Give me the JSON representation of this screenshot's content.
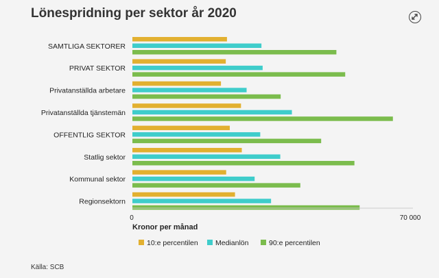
{
  "header": {
    "title": "Lönespridning per sektor år 2020",
    "expand_icon": "expand-arrows-icon"
  },
  "chart_data": {
    "type": "bar",
    "orientation": "horizontal",
    "title": "Lönespridning per sektor år 2020",
    "xlabel": "Kronor per månad",
    "ylabel": "",
    "xlim": [
      0,
      70000
    ],
    "x_ticks": [
      "0",
      "70 000"
    ],
    "grid": false,
    "legend_position": "bottom",
    "categories": [
      "SAMTLIGA SEKTORER",
      "PRIVAT SEKTOR",
      "Privatanställda arbetare",
      "Privatanställda tjänstemän",
      "OFFENTLIG SEKTOR",
      "Statlig sektor",
      "Kommunal sektor",
      "Regionsektorn"
    ],
    "series": [
      {
        "name": "10:e percentilen",
        "color": "#e2b030",
        "values": [
          23600,
          23300,
          22100,
          27100,
          24300,
          27300,
          23400,
          25600
        ]
      },
      {
        "name": "Medianlön",
        "color": "#3fcdcb",
        "values": [
          32200,
          32500,
          28500,
          39800,
          31900,
          36900,
          30500,
          34600
        ]
      },
      {
        "name": "90:e percentilen",
        "color": "#7bbc4d",
        "values": [
          50900,
          53100,
          37000,
          65000,
          47100,
          55400,
          41900,
          56700
        ]
      }
    ]
  },
  "footer": {
    "source": "Källa: SCB"
  }
}
